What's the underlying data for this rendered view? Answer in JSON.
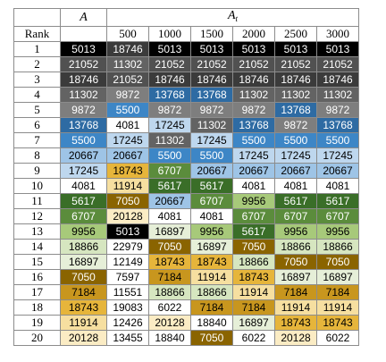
{
  "table": {
    "header": {
      "col_a": "A",
      "col_at_main": "A",
      "col_at_sub": "t",
      "rank_label": "Rank"
    },
    "columns": [
      "500",
      "1000",
      "1500",
      "2000",
      "2500",
      "3000"
    ],
    "colors": {
      "18746": "#3b3b3b",
      "21052": "#515151",
      "11302": "#636363",
      "9872": "#7e7e7e",
      "13768": "#2e6ba3",
      "5500": "#3d86c6",
      "17245": "#bed7ee",
      "20667": "#9ec4e6",
      "4081": "#ffffff",
      "5617": "#3a6e28",
      "6707": "#5b8c3c",
      "9956": "#a7c97a",
      "18866": "#d6e6c0",
      "16897": "#e6efd8",
      "7050": "#8a6400",
      "7184": "#c8961e",
      "18743": "#e6b53b",
      "11914": "#f6dfa0",
      "20128": "#fbecc4",
      "5013": "#000000",
      "12149": "#ffffff",
      "22979": "#ffffff",
      "7597": "#ffffff",
      "11551": "#ffffff",
      "19083": "#ffffff",
      "6022": "#ffffff",
      "12426": "#ffffff",
      "13455": "#ffffff",
      "18840": "#ffffff"
    },
    "light_text": [
      "5013",
      "18746",
      "21052",
      "11302",
      "9872",
      "13768",
      "5500",
      "5617",
      "6707",
      "7050"
    ],
    "rows": [
      {
        "rank": "1",
        "a": "5013",
        "v": [
          "18746",
          "5013",
          "5013",
          "5013",
          "5013",
          "5013"
        ]
      },
      {
        "rank": "2",
        "a": "21052",
        "v": [
          "11302",
          "21052",
          "21052",
          "21052",
          "21052",
          "21052"
        ]
      },
      {
        "rank": "3",
        "a": "18746",
        "v": [
          "21052",
          "18746",
          "18746",
          "18746",
          "18746",
          "18746"
        ]
      },
      {
        "rank": "4",
        "a": "11302",
        "v": [
          "9872",
          "13768",
          "13768",
          "11302",
          "11302",
          "11302"
        ]
      },
      {
        "rank": "5",
        "a": "9872",
        "v": [
          "5500",
          "9872",
          "9872",
          "9872",
          "13768",
          "9872"
        ]
      },
      {
        "rank": "6",
        "a": "13768",
        "v": [
          "4081",
          "17245",
          "11302",
          "13768",
          "9872",
          "13768"
        ]
      },
      {
        "rank": "7",
        "a": "5500",
        "v": [
          "17245",
          "11302",
          "17245",
          "5500",
          "5500",
          "5500"
        ]
      },
      {
        "rank": "8",
        "a": "20667",
        "v": [
          "20667",
          "5500",
          "5500",
          "17245",
          "17245",
          "17245"
        ]
      },
      {
        "rank": "9",
        "a": "17245",
        "v": [
          "18743",
          "6707",
          "20667",
          "20667",
          "20667",
          "20667"
        ]
      },
      {
        "rank": "10",
        "a": "4081",
        "v": [
          "11914",
          "5617",
          "5617",
          "4081",
          "4081",
          "4081"
        ]
      },
      {
        "rank": "11",
        "a": "5617",
        "v": [
          "7050",
          "20667",
          "6707",
          "9956",
          "5617",
          "5617"
        ]
      },
      {
        "rank": "12",
        "a": "6707",
        "v": [
          "20128",
          "4081",
          "4081",
          "6707",
          "6707",
          "6707"
        ]
      },
      {
        "rank": "13",
        "a": "9956",
        "v": [
          "5013",
          "16897",
          "9956",
          "5617",
          "9956",
          "9956"
        ]
      },
      {
        "rank": "14",
        "a": "18866",
        "v": [
          "22979",
          "7050",
          "16897",
          "7050",
          "18866",
          "18866"
        ]
      },
      {
        "rank": "15",
        "a": "16897",
        "v": [
          "12149",
          "18743",
          "18743",
          "18866",
          "7050",
          "7050"
        ]
      },
      {
        "rank": "16",
        "a": "7050",
        "v": [
          "7597",
          "7184",
          "11914",
          "18743",
          "16897",
          "16897"
        ]
      },
      {
        "rank": "17",
        "a": "7184",
        "v": [
          "11551",
          "18866",
          "18866",
          "11914",
          "7184",
          "7184"
        ]
      },
      {
        "rank": "18",
        "a": "18743",
        "v": [
          "19083",
          "6022",
          "7184",
          "7184",
          "11914",
          "11914"
        ]
      },
      {
        "rank": "19",
        "a": "11914",
        "v": [
          "12426",
          "20128",
          "18840",
          "16897",
          "18743",
          "18743"
        ]
      },
      {
        "rank": "20",
        "a": "20128",
        "v": [
          "13455",
          "18840",
          "7050",
          "6022",
          "20128",
          "6022"
        ]
      }
    ]
  }
}
